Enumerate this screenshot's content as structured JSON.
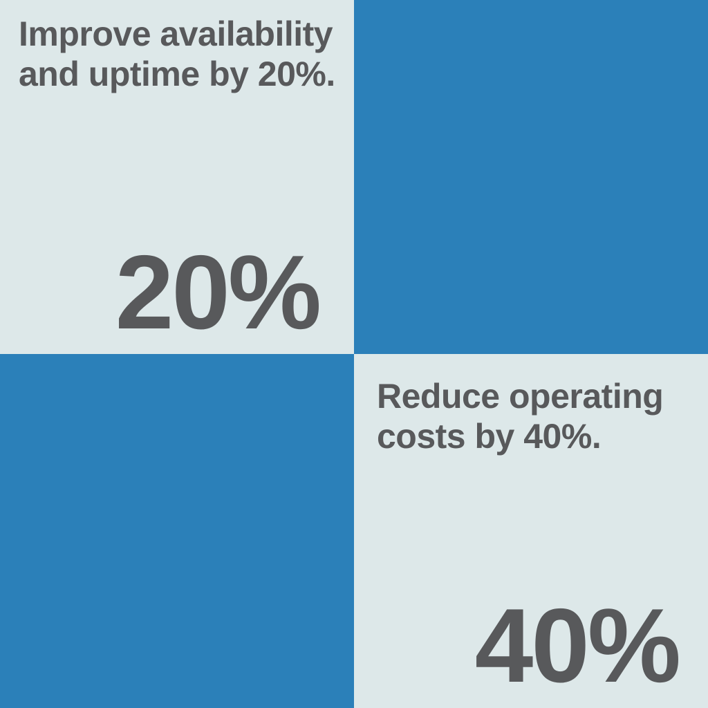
{
  "colors": {
    "accent_blue": "#2b80b9",
    "light_bg": "#dde8e9",
    "text_gray": "#58595b"
  },
  "quadrants": {
    "top_left": {
      "headline": "Improve availability and uptime by 20%.",
      "headline_lines": [
        "Improve availability",
        "and uptime by 20%."
      ],
      "stat": "20%"
    },
    "top_right": {
      "type": "solid-blue"
    },
    "bottom_left": {
      "type": "solid-blue"
    },
    "bottom_right": {
      "headline": "Reduce operating costs by 40%.",
      "headline_lines": [
        "Reduce operating",
        "costs by 40%."
      ],
      "stat": "40%"
    }
  }
}
